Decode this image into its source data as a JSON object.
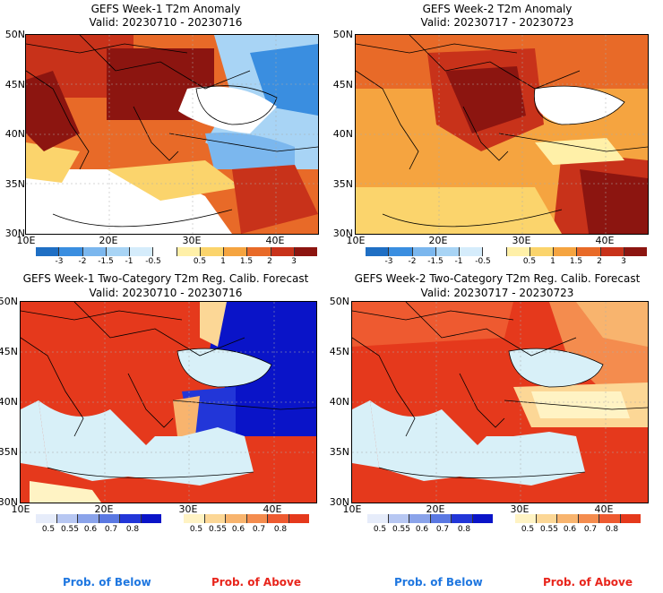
{
  "panels": [
    {
      "title": "GEFS Week-1 T2m Anomaly",
      "valid": "Valid: 20230710 - 20230716",
      "lat_labels": [
        "50N",
        "45N",
        "40N",
        "35N",
        "30N"
      ],
      "lon_labels": [
        "10E",
        "20E",
        "30E",
        "40E"
      ],
      "colorbar_ticks": [
        "-3",
        "-2",
        "-1.5",
        "-1",
        "-0.5",
        "0.5",
        "1",
        "1.5",
        "2",
        "3"
      ]
    },
    {
      "title": "GEFS Week-2 T2m Anomaly",
      "valid": "Valid: 20230717 - 20230723",
      "lat_labels": [
        "50N",
        "45N",
        "40N",
        "35N",
        "30N"
      ],
      "lon_labels": [
        "10E",
        "20E",
        "30E",
        "40E"
      ],
      "colorbar_ticks": [
        "-3",
        "-2",
        "-1.5",
        "-1",
        "-0.5",
        "0.5",
        "1",
        "1.5",
        "2",
        "3"
      ]
    },
    {
      "title": "GEFS Week-1 Two-Category T2m Reg. Calib. Forecast",
      "valid": "Valid: 20230710 - 20230716",
      "lat_labels": [
        "50N",
        "45N",
        "40N",
        "35N",
        "30N"
      ],
      "lon_labels": [
        "10E",
        "20E",
        "30E",
        "40E"
      ],
      "below_ticks": [
        "0.5",
        "0.55",
        "0.6",
        "0.7",
        "0.8"
      ],
      "above_ticks": [
        "0.5",
        "0.55",
        "0.6",
        "0.7",
        "0.8"
      ]
    },
    {
      "title": "GEFS Week-2 Two-Category T2m Reg. Calib. Forecast",
      "valid": "Valid: 20230717 - 20230723",
      "lat_labels": [
        "50N",
        "45N",
        "40N",
        "35N",
        "30N"
      ],
      "lon_labels": [
        "10E",
        "20E",
        "30E",
        "40E"
      ],
      "below_ticks": [
        "0.5",
        "0.55",
        "0.6",
        "0.7",
        "0.8"
      ],
      "above_ticks": [
        "0.5",
        "0.55",
        "0.6",
        "0.7",
        "0.8"
      ]
    }
  ],
  "legend": {
    "below": "Prob. of Below",
    "above": "Prob. of Above"
  },
  "colors": {
    "anomaly_scale": [
      "#1f6fc4",
      "#3a8ee0",
      "#7bb7ee",
      "#a8d4f5",
      "#d5ecfb",
      "#ffffff",
      "#fff0a8",
      "#fbd46c",
      "#f5a440",
      "#e86a28",
      "#c8321a",
      "#8c1510"
    ],
    "below_scale": [
      "#e6ecfa",
      "#b7c7f2",
      "#8aa3ea",
      "#5a78e2",
      "#2236d8",
      "#0a14c8"
    ],
    "above_scale": [
      "#fff3c4",
      "#fcd796",
      "#f8b46e",
      "#f48c4e",
      "#ee5a30",
      "#e5391c"
    ],
    "sea": "#d8f0f8"
  }
}
